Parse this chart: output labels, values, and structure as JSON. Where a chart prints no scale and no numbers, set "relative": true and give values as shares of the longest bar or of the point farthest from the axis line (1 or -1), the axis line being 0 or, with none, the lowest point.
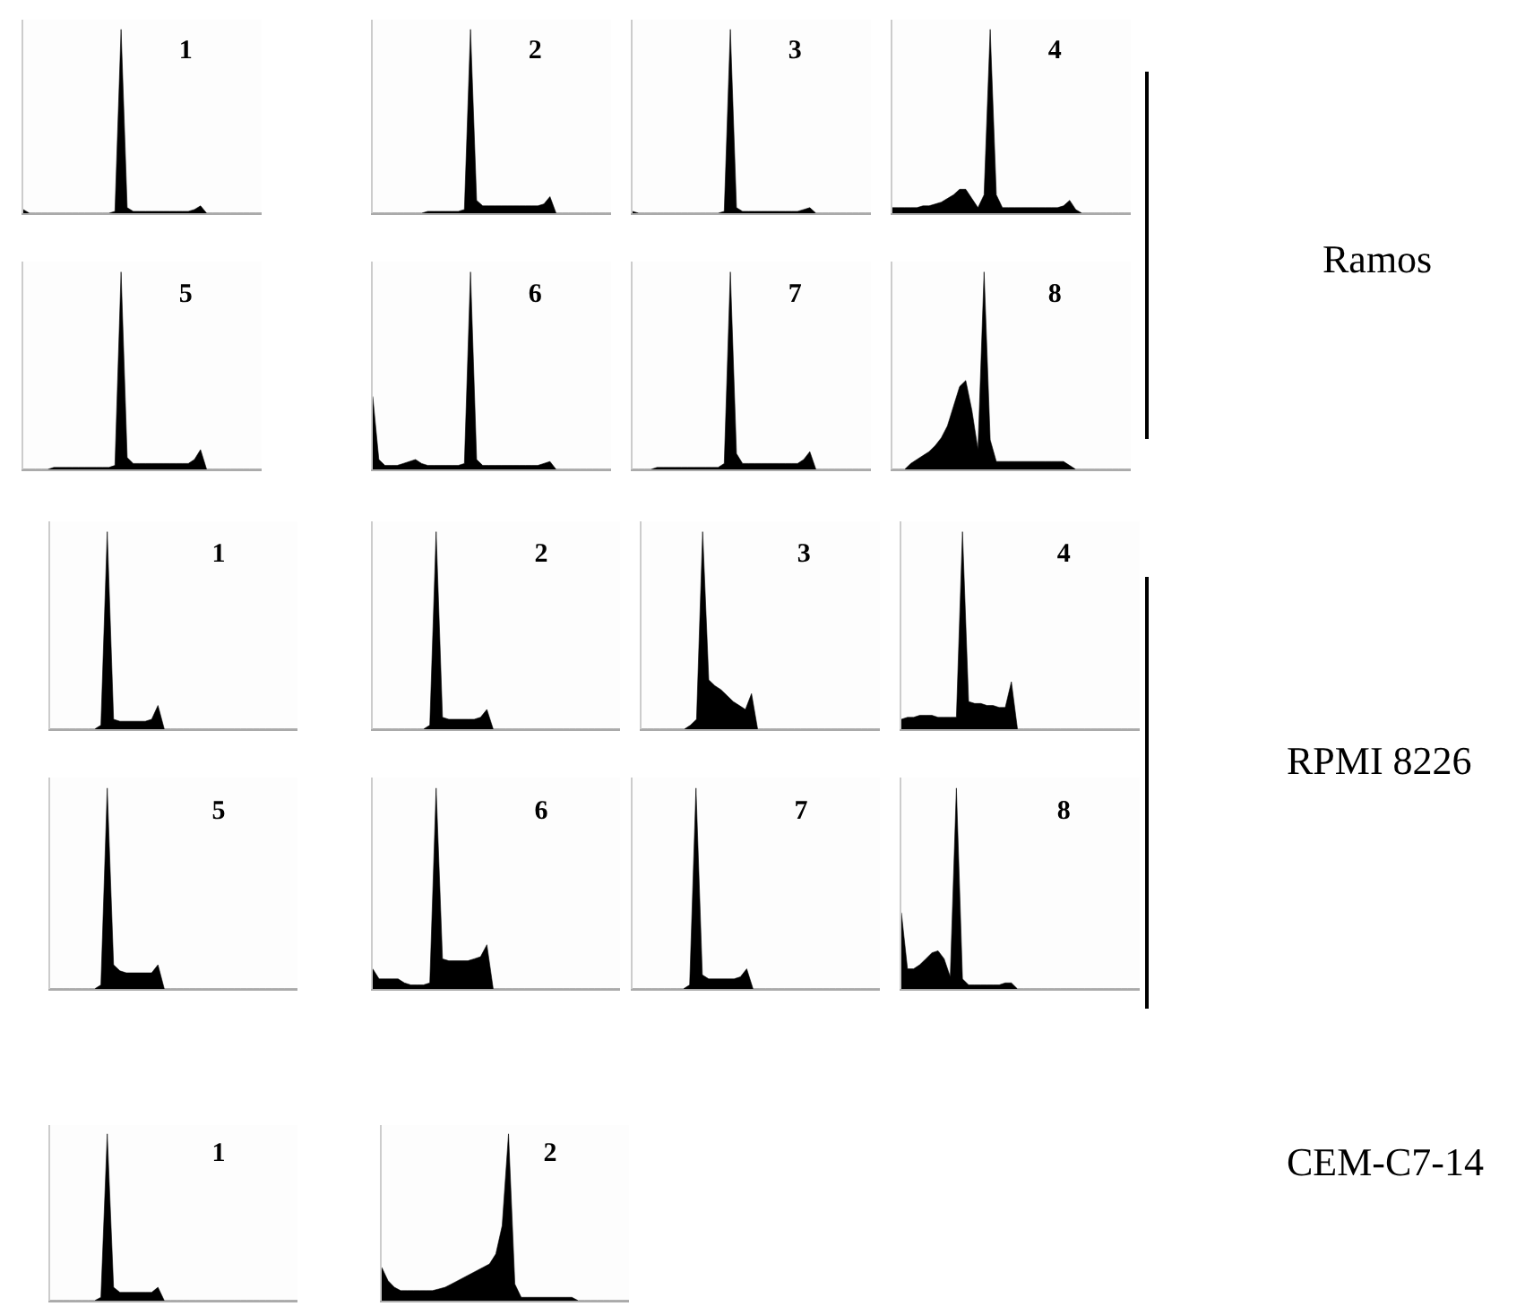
{
  "chart_data": [
    {
      "type": "area",
      "title": "1",
      "relative": true,
      "color": "#000000",
      "categories": [
        null,
        null,
        null,
        null,
        null,
        null,
        null,
        null,
        null,
        null,
        null,
        null,
        null,
        null,
        null,
        null,
        null,
        null,
        null,
        null,
        null,
        null,
        null,
        null,
        null,
        null,
        null,
        null,
        null,
        null,
        null,
        null,
        null,
        null,
        null,
        null,
        null,
        null,
        null,
        null
      ],
      "values": [
        0.02,
        0,
        0,
        0,
        0,
        0,
        0,
        0,
        0,
        0,
        0,
        0,
        0,
        0,
        0,
        0.01,
        1,
        0.03,
        0.01,
        0.01,
        0.01,
        0.01,
        0.01,
        0.01,
        0.01,
        0.01,
        0.01,
        0.01,
        0.02,
        0.04,
        0,
        0,
        0,
        0,
        0,
        0,
        0,
        0,
        0,
        0
      ]
    },
    {
      "type": "area",
      "title": "2",
      "relative": true,
      "color": "#000000",
      "categories": [
        null,
        null,
        null,
        null,
        null,
        null,
        null,
        null,
        null,
        null,
        null,
        null,
        null,
        null,
        null,
        null,
        null,
        null,
        null,
        null,
        null,
        null,
        null,
        null,
        null,
        null,
        null,
        null,
        null,
        null,
        null,
        null,
        null,
        null,
        null,
        null,
        null,
        null,
        null,
        null
      ],
      "values": [
        0,
        0,
        0,
        0,
        0,
        0,
        0,
        0,
        0,
        0.01,
        0.01,
        0.01,
        0.01,
        0.01,
        0.01,
        0.02,
        1,
        0.07,
        0.04,
        0.04,
        0.04,
        0.04,
        0.04,
        0.04,
        0.04,
        0.04,
        0.04,
        0.04,
        0.05,
        0.09,
        0,
        0,
        0,
        0,
        0,
        0,
        0,
        0,
        0,
        0
      ]
    },
    {
      "type": "area",
      "title": "3",
      "relative": true,
      "color": "#000000",
      "categories": [
        null,
        null,
        null,
        null,
        null,
        null,
        null,
        null,
        null,
        null,
        null,
        null,
        null,
        null,
        null,
        null,
        null,
        null,
        null,
        null,
        null,
        null,
        null,
        null,
        null,
        null,
        null,
        null,
        null,
        null,
        null,
        null,
        null,
        null,
        null,
        null,
        null,
        null,
        null,
        null
      ],
      "values": [
        0.01,
        0,
        0,
        0,
        0,
        0,
        0,
        0,
        0,
        0,
        0,
        0,
        0,
        0,
        0,
        0.01,
        1,
        0.03,
        0.01,
        0.01,
        0.01,
        0.01,
        0.01,
        0.01,
        0.01,
        0.01,
        0.01,
        0.01,
        0.02,
        0.03,
        0,
        0,
        0,
        0,
        0,
        0,
        0,
        0,
        0,
        0
      ]
    },
    {
      "type": "area",
      "title": "4",
      "relative": true,
      "color": "#000000",
      "categories": [
        null,
        null,
        null,
        null,
        null,
        null,
        null,
        null,
        null,
        null,
        null,
        null,
        null,
        null,
        null,
        null,
        null,
        null,
        null,
        null,
        null,
        null,
        null,
        null,
        null,
        null,
        null,
        null,
        null,
        null,
        null,
        null,
        null,
        null,
        null,
        null,
        null,
        null,
        null,
        null
      ],
      "values": [
        0.03,
        0.03,
        0.03,
        0.03,
        0.03,
        0.04,
        0.04,
        0.05,
        0.06,
        0.08,
        0.1,
        0.13,
        0.13,
        0.08,
        0.03,
        0.1,
        1,
        0.1,
        0.03,
        0.03,
        0.03,
        0.03,
        0.03,
        0.03,
        0.03,
        0.03,
        0.03,
        0.03,
        0.04,
        0.07,
        0.02,
        0,
        0,
        0,
        0,
        0,
        0,
        0,
        0,
        0
      ]
    },
    {
      "type": "area",
      "title": "5",
      "relative": true,
      "color": "#000000",
      "categories": [
        null,
        null,
        null,
        null,
        null,
        null,
        null,
        null,
        null,
        null,
        null,
        null,
        null,
        null,
        null,
        null,
        null,
        null,
        null,
        null,
        null,
        null,
        null,
        null,
        null,
        null,
        null,
        null,
        null,
        null,
        null,
        null,
        null,
        null,
        null,
        null,
        null,
        null,
        null,
        null
      ],
      "values": [
        0,
        0,
        0,
        0,
        0,
        0.01,
        0.01,
        0.01,
        0.01,
        0.01,
        0.01,
        0.01,
        0.01,
        0.01,
        0.01,
        0.02,
        1,
        0.06,
        0.03,
        0.03,
        0.03,
        0.03,
        0.03,
        0.03,
        0.03,
        0.03,
        0.03,
        0.03,
        0.05,
        0.1,
        0,
        0,
        0,
        0,
        0,
        0,
        0,
        0,
        0,
        0
      ]
    },
    {
      "type": "area",
      "title": "6",
      "relative": true,
      "color": "#000000",
      "categories": [
        null,
        null,
        null,
        null,
        null,
        null,
        null,
        null,
        null,
        null,
        null,
        null,
        null,
        null,
        null,
        null,
        null,
        null,
        null,
        null,
        null,
        null,
        null,
        null,
        null,
        null,
        null,
        null,
        null,
        null,
        null,
        null,
        null,
        null,
        null,
        null,
        null,
        null,
        null,
        null
      ],
      "values": [
        0.37,
        0.05,
        0.02,
        0.02,
        0.02,
        0.03,
        0.04,
        0.05,
        0.03,
        0.02,
        0.02,
        0.02,
        0.02,
        0.02,
        0.02,
        0.03,
        1,
        0.05,
        0.02,
        0.02,
        0.02,
        0.02,
        0.02,
        0.02,
        0.02,
        0.02,
        0.02,
        0.02,
        0.03,
        0.04,
        0,
        0,
        0,
        0,
        0,
        0,
        0,
        0,
        0,
        0
      ]
    },
    {
      "type": "area",
      "title": "7",
      "relative": true,
      "color": "#000000",
      "categories": [
        null,
        null,
        null,
        null,
        null,
        null,
        null,
        null,
        null,
        null,
        null,
        null,
        null,
        null,
        null,
        null,
        null,
        null,
        null,
        null,
        null,
        null,
        null,
        null,
        null,
        null,
        null,
        null,
        null,
        null,
        null,
        null,
        null,
        null,
        null,
        null,
        null,
        null,
        null,
        null
      ],
      "values": [
        0,
        0,
        0,
        0,
        0.01,
        0.01,
        0.01,
        0.01,
        0.01,
        0.01,
        0.01,
        0.01,
        0.01,
        0.01,
        0.01,
        0.03,
        1,
        0.08,
        0.03,
        0.03,
        0.03,
        0.03,
        0.03,
        0.03,
        0.03,
        0.03,
        0.03,
        0.03,
        0.05,
        0.09,
        0,
        0,
        0,
        0,
        0,
        0,
        0,
        0,
        0,
        0
      ]
    },
    {
      "type": "area",
      "title": "8",
      "relative": true,
      "color": "#000000",
      "categories": [
        null,
        null,
        null,
        null,
        null,
        null,
        null,
        null,
        null,
        null,
        null,
        null,
        null,
        null,
        null,
        null,
        null,
        null,
        null,
        null,
        null,
        null,
        null,
        null,
        null,
        null,
        null,
        null,
        null,
        null,
        null,
        null,
        null,
        null,
        null,
        null,
        null,
        null,
        null,
        null
      ],
      "values": [
        0,
        0,
        0,
        0.03,
        0.05,
        0.07,
        0.09,
        0.12,
        0.16,
        0.22,
        0.32,
        0.42,
        0.45,
        0.3,
        0.1,
        1,
        0.15,
        0.04,
        0.04,
        0.04,
        0.04,
        0.04,
        0.04,
        0.04,
        0.04,
        0.04,
        0.04,
        0.04,
        0.04,
        0.02,
        0,
        0,
        0,
        0,
        0,
        0,
        0,
        0,
        0,
        0
      ]
    },
    {
      "type": "other",
      "title": "Ramos"
    },
    {
      "type": "area",
      "title": "1",
      "relative": true,
      "color": "#000000",
      "categories": [
        null,
        null,
        null,
        null,
        null,
        null,
        null,
        null,
        null,
        null,
        null,
        null,
        null,
        null,
        null,
        null,
        null,
        null,
        null,
        null,
        null,
        null,
        null,
        null,
        null,
        null,
        null,
        null,
        null,
        null,
        null,
        null,
        null,
        null,
        null,
        null,
        null,
        null,
        null,
        null
      ],
      "values": [
        0,
        0,
        0,
        0,
        0,
        0,
        0,
        0,
        0.02,
        1,
        0.05,
        0.04,
        0.04,
        0.04,
        0.04,
        0.04,
        0.05,
        0.12,
        0,
        0,
        0,
        0,
        0,
        0,
        0,
        0,
        0,
        0,
        0,
        0,
        0,
        0,
        0,
        0,
        0,
        0,
        0,
        0,
        0,
        0
      ]
    },
    {
      "type": "area",
      "title": "2",
      "relative": true,
      "color": "#000000",
      "categories": [
        null,
        null,
        null,
        null,
        null,
        null,
        null,
        null,
        null,
        null,
        null,
        null,
        null,
        null,
        null,
        null,
        null,
        null,
        null,
        null,
        null,
        null,
        null,
        null,
        null,
        null,
        null,
        null,
        null,
        null,
        null,
        null,
        null,
        null,
        null,
        null,
        null,
        null,
        null,
        null
      ],
      "values": [
        0,
        0,
        0,
        0,
        0,
        0,
        0,
        0,
        0,
        0.02,
        1,
        0.06,
        0.05,
        0.05,
        0.05,
        0.05,
        0.05,
        0.06,
        0.1,
        0,
        0,
        0,
        0,
        0,
        0,
        0,
        0,
        0,
        0,
        0,
        0,
        0,
        0,
        0,
        0,
        0,
        0,
        0,
        0,
        0
      ]
    },
    {
      "type": "area",
      "title": "3",
      "relative": true,
      "color": "#000000",
      "categories": [
        null,
        null,
        null,
        null,
        null,
        null,
        null,
        null,
        null,
        null,
        null,
        null,
        null,
        null,
        null,
        null,
        null,
        null,
        null,
        null,
        null,
        null,
        null,
        null,
        null,
        null,
        null,
        null,
        null,
        null,
        null,
        null,
        null,
        null,
        null,
        null,
        null,
        null,
        null,
        null
      ],
      "values": [
        0,
        0,
        0,
        0,
        0,
        0,
        0,
        0,
        0.02,
        0.05,
        1,
        0.25,
        0.22,
        0.2,
        0.17,
        0.14,
        0.12,
        0.1,
        0.18,
        0,
        0,
        0,
        0,
        0,
        0,
        0,
        0,
        0,
        0,
        0,
        0,
        0,
        0,
        0,
        0,
        0,
        0,
        0,
        0,
        0
      ]
    },
    {
      "type": "area",
      "title": "4",
      "relative": true,
      "color": "#000000",
      "categories": [
        null,
        null,
        null,
        null,
        null,
        null,
        null,
        null,
        null,
        null,
        null,
        null,
        null,
        null,
        null,
        null,
        null,
        null,
        null,
        null,
        null,
        null,
        null,
        null,
        null,
        null,
        null,
        null,
        null,
        null,
        null,
        null,
        null,
        null,
        null,
        null,
        null,
        null,
        null,
        null
      ],
      "values": [
        0.05,
        0.06,
        0.06,
        0.07,
        0.07,
        0.07,
        0.06,
        0.06,
        0.06,
        0.06,
        1,
        0.14,
        0.13,
        0.13,
        0.12,
        0.12,
        0.11,
        0.11,
        0.24,
        0,
        0,
        0,
        0,
        0,
        0,
        0,
        0,
        0,
        0,
        0,
        0,
        0,
        0,
        0,
        0,
        0,
        0,
        0,
        0,
        0
      ]
    },
    {
      "type": "area",
      "title": "5",
      "relative": true,
      "color": "#000000",
      "categories": [
        null,
        null,
        null,
        null,
        null,
        null,
        null,
        null,
        null,
        null,
        null,
        null,
        null,
        null,
        null,
        null,
        null,
        null,
        null,
        null,
        null,
        null,
        null,
        null,
        null,
        null,
        null,
        null,
        null,
        null,
        null,
        null,
        null,
        null,
        null,
        null,
        null,
        null,
        null,
        null
      ],
      "values": [
        0,
        0,
        0,
        0,
        0,
        0,
        0,
        0,
        0.02,
        1,
        0.12,
        0.09,
        0.08,
        0.08,
        0.08,
        0.08,
        0.08,
        0.12,
        0,
        0,
        0,
        0,
        0,
        0,
        0,
        0,
        0,
        0,
        0,
        0,
        0,
        0,
        0,
        0,
        0,
        0,
        0,
        0,
        0,
        0
      ]
    },
    {
      "type": "area",
      "title": "6",
      "relative": true,
      "color": "#000000",
      "categories": [
        null,
        null,
        null,
        null,
        null,
        null,
        null,
        null,
        null,
        null,
        null,
        null,
        null,
        null,
        null,
        null,
        null,
        null,
        null,
        null,
        null,
        null,
        null,
        null,
        null,
        null,
        null,
        null,
        null,
        null,
        null,
        null,
        null,
        null,
        null,
        null,
        null,
        null,
        null,
        null
      ],
      "values": [
        0.1,
        0.05,
        0.05,
        0.05,
        0.05,
        0.03,
        0.02,
        0.02,
        0.02,
        0.03,
        1,
        0.15,
        0.14,
        0.14,
        0.14,
        0.14,
        0.15,
        0.16,
        0.22,
        0,
        0,
        0,
        0,
        0,
        0,
        0,
        0,
        0,
        0,
        0,
        0,
        0,
        0,
        0,
        0,
        0,
        0,
        0,
        0,
        0
      ]
    },
    {
      "type": "area",
      "title": "7",
      "relative": true,
      "color": "#000000",
      "categories": [
        null,
        null,
        null,
        null,
        null,
        null,
        null,
        null,
        null,
        null,
        null,
        null,
        null,
        null,
        null,
        null,
        null,
        null,
        null,
        null,
        null,
        null,
        null,
        null,
        null,
        null,
        null,
        null,
        null,
        null,
        null,
        null,
        null,
        null,
        null,
        null,
        null,
        null,
        null,
        null
      ],
      "values": [
        0,
        0,
        0,
        0,
        0,
        0,
        0,
        0,
        0,
        0.02,
        1,
        0.07,
        0.05,
        0.05,
        0.05,
        0.05,
        0.05,
        0.06,
        0.1,
        0,
        0,
        0,
        0,
        0,
        0,
        0,
        0,
        0,
        0,
        0,
        0,
        0,
        0,
        0,
        0,
        0,
        0,
        0,
        0,
        0
      ]
    },
    {
      "type": "area",
      "title": "8",
      "relative": true,
      "color": "#000000",
      "categories": [
        null,
        null,
        null,
        null,
        null,
        null,
        null,
        null,
        null,
        null,
        null,
        null,
        null,
        null,
        null,
        null,
        null,
        null,
        null,
        null,
        null,
        null,
        null,
        null,
        null,
        null,
        null,
        null,
        null,
        null,
        null,
        null,
        null,
        null,
        null,
        null,
        null,
        null,
        null,
        null
      ],
      "values": [
        0.38,
        0.1,
        0.1,
        0.12,
        0.15,
        0.18,
        0.19,
        0.15,
        0.06,
        1,
        0.05,
        0.02,
        0.02,
        0.02,
        0.02,
        0.02,
        0.02,
        0.03,
        0.03,
        0,
        0,
        0,
        0,
        0,
        0,
        0,
        0,
        0,
        0,
        0,
        0,
        0,
        0,
        0,
        0,
        0,
        0,
        0,
        0,
        0
      ]
    },
    {
      "type": "other",
      "title": "RPMI 8226"
    },
    {
      "type": "area",
      "title": "1",
      "relative": true,
      "color": "#000000",
      "categories": [
        null,
        null,
        null,
        null,
        null,
        null,
        null,
        null,
        null,
        null,
        null,
        null,
        null,
        null,
        null,
        null,
        null,
        null,
        null,
        null,
        null,
        null,
        null,
        null,
        null,
        null,
        null,
        null,
        null,
        null,
        null,
        null,
        null,
        null,
        null,
        null,
        null,
        null,
        null,
        null
      ],
      "values": [
        0,
        0,
        0,
        0,
        0,
        0,
        0,
        0,
        0.02,
        1,
        0.08,
        0.05,
        0.05,
        0.05,
        0.05,
        0.05,
        0.05,
        0.08,
        0,
        0,
        0,
        0,
        0,
        0,
        0,
        0,
        0,
        0,
        0,
        0,
        0,
        0,
        0,
        0,
        0,
        0,
        0,
        0,
        0,
        0
      ]
    },
    {
      "type": "area",
      "title": "2",
      "relative": true,
      "color": "#000000",
      "categories": [
        null,
        null,
        null,
        null,
        null,
        null,
        null,
        null,
        null,
        null,
        null,
        null,
        null,
        null,
        null,
        null,
        null,
        null,
        null,
        null,
        null,
        null,
        null,
        null,
        null,
        null,
        null,
        null,
        null,
        null,
        null,
        null,
        null,
        null,
        null,
        null,
        null,
        null,
        null,
        null
      ],
      "values": [
        0.2,
        0.12,
        0.08,
        0.06,
        0.06,
        0.06,
        0.06,
        0.06,
        0.06,
        0.07,
        0.08,
        0.1,
        0.12,
        0.14,
        0.16,
        0.18,
        0.2,
        0.22,
        0.28,
        0.45,
        1,
        0.1,
        0.02,
        0.02,
        0.02,
        0.02,
        0.02,
        0.02,
        0.02,
        0.02,
        0.02,
        0,
        0,
        0,
        0,
        0,
        0,
        0,
        0,
        0
      ]
    },
    {
      "type": "other",
      "title": "CEM-C7-14"
    }
  ]
}
